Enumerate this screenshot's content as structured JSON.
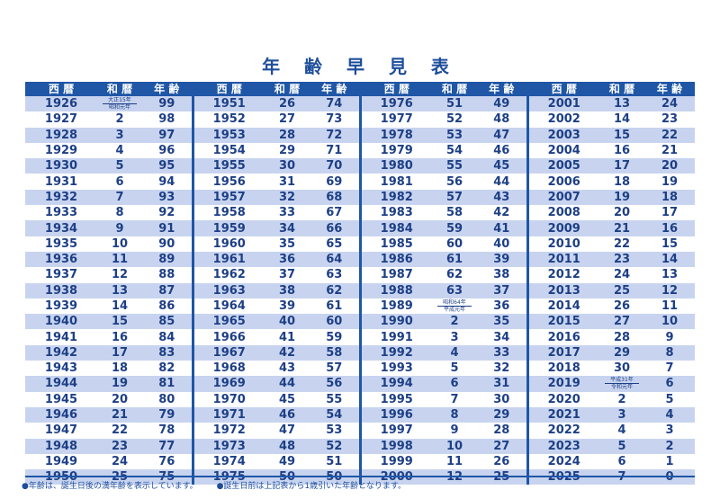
{
  "title": "年 齢 早 見 表",
  "headers": [
    "西 暦",
    "和 暦",
    "年 齢"
  ],
  "groups": [
    [
      [
        "1926",
        "大正15年|昭和元年",
        "99"
      ],
      [
        "1927",
        "2",
        "98"
      ],
      [
        "1928",
        "3",
        "97"
      ],
      [
        "1929",
        "4",
        "96"
      ],
      [
        "1930",
        "5",
        "95"
      ],
      [
        "1931",
        "6",
        "94"
      ],
      [
        "1932",
        "7",
        "93"
      ],
      [
        "1933",
        "8",
        "92"
      ],
      [
        "1934",
        "9",
        "91"
      ],
      [
        "1935",
        "10",
        "90"
      ],
      [
        "1936",
        "11",
        "89"
      ],
      [
        "1937",
        "12",
        "88"
      ],
      [
        "1938",
        "13",
        "87"
      ],
      [
        "1939",
        "14",
        "86"
      ],
      [
        "1940",
        "15",
        "85"
      ],
      [
        "1941",
        "16",
        "84"
      ],
      [
        "1942",
        "17",
        "83"
      ],
      [
        "1943",
        "18",
        "82"
      ],
      [
        "1944",
        "19",
        "81"
      ],
      [
        "1945",
        "20",
        "80"
      ],
      [
        "1946",
        "21",
        "79"
      ],
      [
        "1947",
        "22",
        "78"
      ],
      [
        "1948",
        "23",
        "77"
      ],
      [
        "1949",
        "24",
        "76"
      ],
      [
        "1950",
        "25",
        "75"
      ]
    ],
    [
      [
        "1951",
        "26",
        "74"
      ],
      [
        "1952",
        "27",
        "73"
      ],
      [
        "1953",
        "28",
        "72"
      ],
      [
        "1954",
        "29",
        "71"
      ],
      [
        "1955",
        "30",
        "70"
      ],
      [
        "1956",
        "31",
        "69"
      ],
      [
        "1957",
        "32",
        "68"
      ],
      [
        "1958",
        "33",
        "67"
      ],
      [
        "1959",
        "34",
        "66"
      ],
      [
        "1960",
        "35",
        "65"
      ],
      [
        "1961",
        "36",
        "64"
      ],
      [
        "1962",
        "37",
        "63"
      ],
      [
        "1963",
        "38",
        "62"
      ],
      [
        "1964",
        "39",
        "61"
      ],
      [
        "1965",
        "40",
        "60"
      ],
      [
        "1966",
        "41",
        "59"
      ],
      [
        "1967",
        "42",
        "58"
      ],
      [
        "1968",
        "43",
        "57"
      ],
      [
        "1969",
        "44",
        "56"
      ],
      [
        "1970",
        "45",
        "55"
      ],
      [
        "1971",
        "46",
        "54"
      ],
      [
        "1972",
        "47",
        "53"
      ],
      [
        "1973",
        "48",
        "52"
      ],
      [
        "1974",
        "49",
        "51"
      ],
      [
        "1975",
        "50",
        "50"
      ]
    ],
    [
      [
        "1976",
        "51",
        "49"
      ],
      [
        "1977",
        "52",
        "48"
      ],
      [
        "1978",
        "53",
        "47"
      ],
      [
        "1979",
        "54",
        "46"
      ],
      [
        "1980",
        "55",
        "45"
      ],
      [
        "1981",
        "56",
        "44"
      ],
      [
        "1982",
        "57",
        "43"
      ],
      [
        "1983",
        "58",
        "42"
      ],
      [
        "1984",
        "59",
        "41"
      ],
      [
        "1985",
        "60",
        "40"
      ],
      [
        "1986",
        "61",
        "39"
      ],
      [
        "1987",
        "62",
        "38"
      ],
      [
        "1988",
        "63",
        "37"
      ],
      [
        "1989",
        "昭和64年|平成元年",
        "36"
      ],
      [
        "1990",
        "2",
        "35"
      ],
      [
        "1991",
        "3",
        "34"
      ],
      [
        "1992",
        "4",
        "33"
      ],
      [
        "1993",
        "5",
        "32"
      ],
      [
        "1994",
        "6",
        "31"
      ],
      [
        "1995",
        "7",
        "30"
      ],
      [
        "1996",
        "8",
        "29"
      ],
      [
        "1997",
        "9",
        "28"
      ],
      [
        "1998",
        "10",
        "27"
      ],
      [
        "1999",
        "11",
        "26"
      ],
      [
        "2000",
        "12",
        "25"
      ]
    ],
    [
      [
        "2001",
        "13",
        "24"
      ],
      [
        "2002",
        "14",
        "23"
      ],
      [
        "2003",
        "15",
        "22"
      ],
      [
        "2004",
        "16",
        "21"
      ],
      [
        "2005",
        "17",
        "20"
      ],
      [
        "2006",
        "18",
        "19"
      ],
      [
        "2007",
        "19",
        "18"
      ],
      [
        "2008",
        "20",
        "17"
      ],
      [
        "2009",
        "21",
        "16"
      ],
      [
        "2010",
        "22",
        "15"
      ],
      [
        "2011",
        "23",
        "14"
      ],
      [
        "2012",
        "24",
        "13"
      ],
      [
        "2013",
        "25",
        "12"
      ],
      [
        "2014",
        "26",
        "11"
      ],
      [
        "2015",
        "27",
        "10"
      ],
      [
        "2016",
        "28",
        "9"
      ],
      [
        "2017",
        "29",
        "8"
      ],
      [
        "2018",
        "30",
        "7"
      ],
      [
        "2019",
        "平成31年|令和元年",
        "6"
      ],
      [
        "2020",
        "2",
        "5"
      ],
      [
        "2021",
        "3",
        "4"
      ],
      [
        "2022",
        "4",
        "3"
      ],
      [
        "2023",
        "5",
        "2"
      ],
      [
        "2024",
        "6",
        "1"
      ],
      [
        "2025",
        "7",
        "0"
      ]
    ]
  ],
  "footer": {
    "note1": "●年齢は、誕生日後の満年齢を表示しています。",
    "note2": "●誕生日前は上記表から1歳引いた年齢となります。"
  },
  "colors": {
    "header_bg": "#1f56a6",
    "stripe": "#c8d4ef",
    "text": "#1d3f86"
  }
}
